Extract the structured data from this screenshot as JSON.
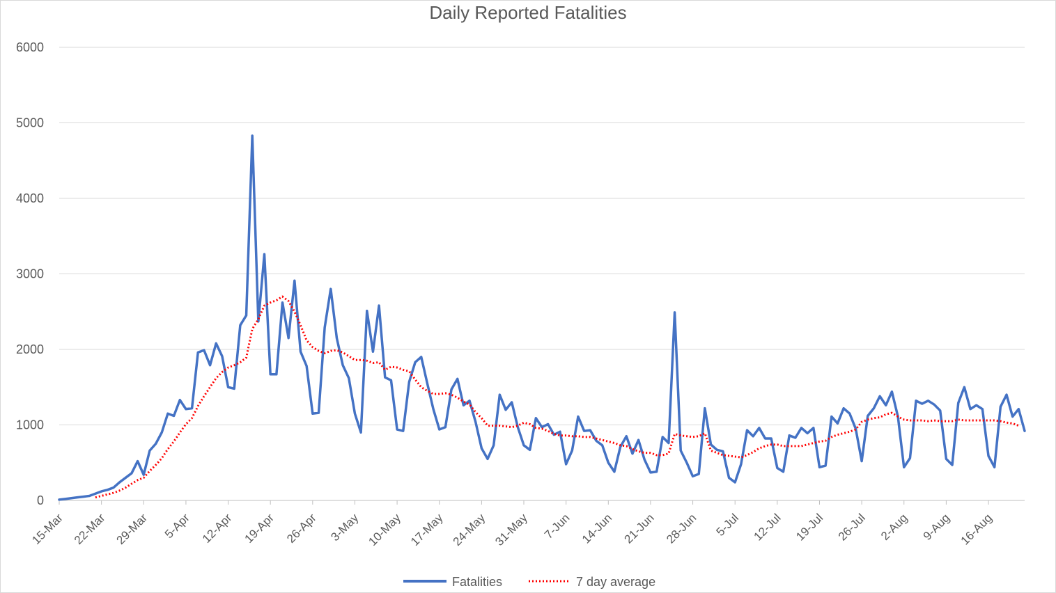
{
  "chart_data": {
    "type": "line",
    "title": "Daily Reported Fatalities",
    "xlabel": "",
    "ylabel": "",
    "ylim": [
      0,
      6000
    ],
    "yticks": [
      0,
      1000,
      2000,
      3000,
      4000,
      5000,
      6000
    ],
    "grid": true,
    "legend_position": "bottom",
    "x_tick_labels": [
      "15-Mar",
      "22-Mar",
      "29-Mar",
      "5-Apr",
      "12-Apr",
      "19-Apr",
      "26-Apr",
      "3-May",
      "10-May",
      "17-May",
      "24-May",
      "31-May",
      "7-Jun",
      "14-Jun",
      "21-Jun",
      "28-Jun",
      "5-Jul",
      "12-Jul",
      "19-Jul",
      "26-Jul",
      "2-Aug",
      "9-Aug",
      "16-Aug"
    ],
    "x_start": "15-Mar",
    "series": [
      {
        "name": "Fatalities",
        "color": "#4472C4",
        "style": "solid",
        "values": [
          10,
          20,
          30,
          40,
          50,
          60,
          90,
          120,
          140,
          170,
          240,
          300,
          360,
          520,
          340,
          660,
          750,
          900,
          1150,
          1120,
          1330,
          1210,
          1220,
          1960,
          1990,
          1790,
          2080,
          1910,
          1500,
          1480,
          2320,
          2450,
          4830,
          2370,
          3260,
          1670,
          1670,
          2620,
          2150,
          2910,
          1970,
          1780,
          1150,
          1160,
          2290,
          2800,
          2150,
          1790,
          1620,
          1150,
          900,
          2510,
          1970,
          2580,
          1630,
          1590,
          940,
          920,
          1570,
          1830,
          1900,
          1550,
          1210,
          940,
          970,
          1470,
          1610,
          1260,
          1320,
          1040,
          690,
          550,
          730,
          1400,
          1200,
          1300,
          970,
          730,
          670,
          1090,
          970,
          1010,
          870,
          910,
          480,
          660,
          1110,
          920,
          930,
          790,
          730,
          500,
          380,
          710,
          850,
          620,
          800,
          540,
          370,
          380,
          840,
          760,
          2490,
          660,
          500,
          320,
          350,
          1220,
          740,
          670,
          650,
          300,
          240,
          480,
          930,
          850,
          960,
          820,
          820,
          430,
          380,
          860,
          830,
          960,
          890,
          960,
          440,
          460,
          1110,
          1020,
          1220,
          1150,
          950,
          520,
          1120,
          1220,
          1380,
          1260,
          1440,
          1110,
          440,
          560,
          1320,
          1280,
          1320,
          1270,
          1190,
          550,
          470,
          1290,
          1500,
          1210,
          1260,
          1210,
          590,
          440,
          1240,
          1400,
          1110,
          1210,
          920
        ]
      },
      {
        "name": "7 day average",
        "color": "#FF0000",
        "style": "dotted",
        "values": [
          null,
          null,
          null,
          null,
          null,
          null,
          40,
          60,
          80,
          100,
          130,
          170,
          220,
          270,
          300,
          390,
          470,
          560,
          680,
          780,
          900,
          1010,
          1090,
          1250,
          1380,
          1500,
          1620,
          1700,
          1760,
          1790,
          1830,
          1890,
          2270,
          2400,
          2580,
          2620,
          2650,
          2700,
          2640,
          2500,
          2320,
          2120,
          2030,
          1980,
          1950,
          1980,
          1990,
          1960,
          1910,
          1860,
          1860,
          1850,
          1820,
          1830,
          1730,
          1770,
          1760,
          1730,
          1710,
          1600,
          1500,
          1450,
          1410,
          1410,
          1420,
          1400,
          1360,
          1310,
          1270,
          1170,
          1090,
          990,
          990,
          990,
          980,
          970,
          990,
          1030,
          1010,
          960,
          950,
          920,
          880,
          860,
          860,
          850,
          850,
          840,
          840,
          820,
          800,
          780,
          760,
          730,
          720,
          680,
          650,
          630,
          630,
          600,
          600,
          620,
          880,
          860,
          850,
          840,
          850,
          890,
          660,
          630,
          600,
          590,
          580,
          570,
          600,
          640,
          690,
          720,
          740,
          740,
          720,
          720,
          720,
          720,
          740,
          760,
          780,
          790,
          840,
          870,
          890,
          910,
          940,
          1040,
          1070,
          1090,
          1100,
          1140,
          1160,
          1110,
          1070,
          1060,
          1060,
          1060,
          1050,
          1060,
          1050,
          1050,
          1050,
          1070,
          1060,
          1060,
          1060,
          1060,
          1060,
          1060,
          1050,
          1030,
          1020,
          990
        ]
      }
    ]
  }
}
